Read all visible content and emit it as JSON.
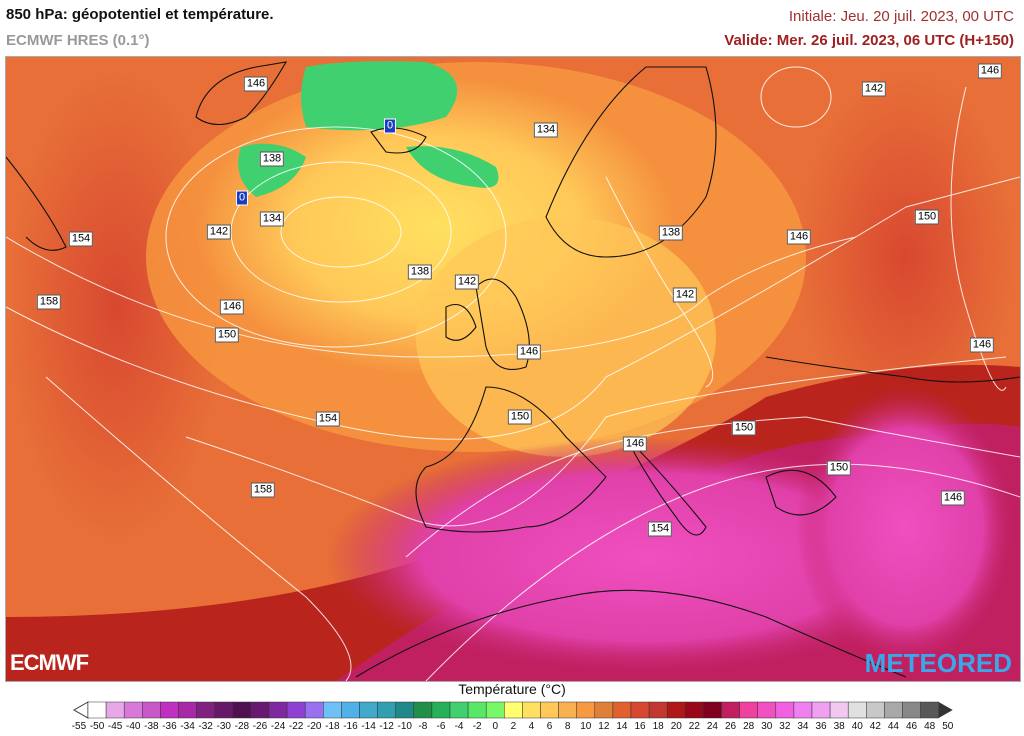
{
  "header": {
    "title": "850 hPa: géopotentiel et température.",
    "model": "ECMWF HRES (0.1°)",
    "initial": "Initiale: Jeu. 20 juil. 2023, 00 UTC",
    "valid": "Valide: Mer. 26 juil. 2023, 06 UTC (H+150)"
  },
  "map": {
    "contour_labels": [
      "146",
      "142",
      "146",
      "134",
      "138",
      "0",
      "0",
      "134",
      "142",
      "154",
      "150",
      "146",
      "138",
      "142",
      "138",
      "142",
      "158",
      "146",
      "150",
      "146",
      "154",
      "150",
      "150",
      "146",
      "150",
      "158",
      "146",
      "154",
      "146"
    ]
  },
  "logos": {
    "left": "ECMWF",
    "right": "METEORED"
  },
  "colorbar": {
    "title": "Température (°C)",
    "ticks": [
      "-55",
      "-50",
      "-45",
      "-40",
      "-38",
      "-36",
      "-34",
      "-32",
      "-30",
      "-28",
      "-26",
      "-24",
      "-22",
      "-20",
      "-18",
      "-16",
      "-14",
      "-12",
      "-10",
      "-8",
      "-6",
      "-4",
      "-2",
      "0",
      "2",
      "4",
      "6",
      "8",
      "10",
      "12",
      "14",
      "16",
      "18",
      "20",
      "22",
      "24",
      "26",
      "28",
      "30",
      "32",
      "34",
      "36",
      "38",
      "40",
      "42",
      "44",
      "46",
      "48",
      "50"
    ],
    "colors": [
      "#ffffff",
      "#e8a8e8",
      "#d878d8",
      "#c858c8",
      "#c030c0",
      "#a828a8",
      "#802080",
      "#681868",
      "#501050",
      "#681870",
      "#8028a0",
      "#9040d0",
      "#9870f0",
      "#70c0f8",
      "#50b0e8",
      "#40a8c8",
      "#30a0b0",
      "#208888",
      "#209048",
      "#28b058",
      "#40d070",
      "#58e868",
      "#78f868",
      "#ffff70",
      "#ffe060",
      "#ffc858",
      "#f8b050",
      "#f89840",
      "#e08038",
      "#e06030",
      "#d84830",
      "#c03830",
      "#b01818",
      "#980818",
      "#800020",
      "#c02060",
      "#f040a0",
      "#f050c0",
      "#f060e0",
      "#f080f0",
      "#f0a0f0",
      "#f0c8f0",
      "#e0e0e0",
      "#c8c8c8",
      "#a8a8a8",
      "#888888",
      "#585858"
    ]
  }
}
